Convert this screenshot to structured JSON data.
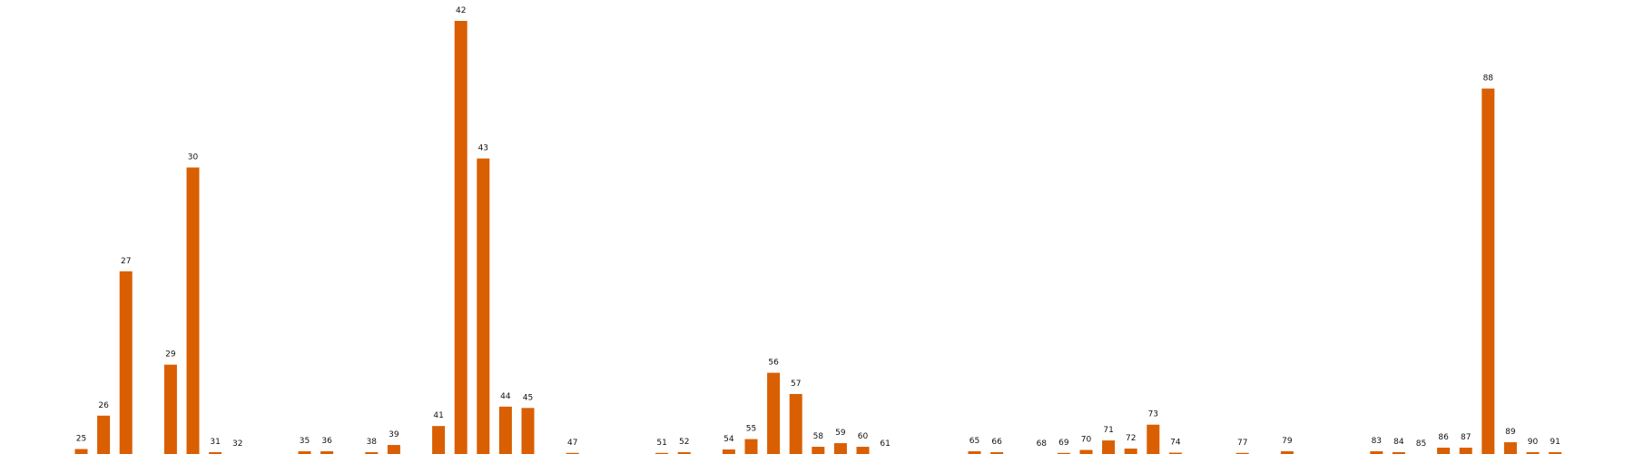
{
  "chart_data": {
    "type": "bar",
    "title": "",
    "xlabel": "",
    "ylabel": "",
    "grid": false,
    "legend": "none",
    "colors": {
      "bar": "#d95f02",
      "background": "#ffffff",
      "label": "#111111"
    },
    "ylim": [
      0,
      96
    ],
    "categories": [
      "25",
      "26",
      "27",
      "29",
      "30",
      "31",
      "32",
      "35",
      "36",
      "38",
      "39",
      "41",
      "42",
      "43",
      "44",
      "45",
      "47",
      "51",
      "52",
      "54",
      "55",
      "56",
      "57",
      "58",
      "59",
      "60",
      "61",
      "65",
      "66",
      "68",
      "69",
      "70",
      "71",
      "72",
      "73",
      "74",
      "77",
      "79",
      "83",
      "84",
      "85",
      "86",
      "87",
      "88",
      "89",
      "90",
      "91"
    ],
    "values": [
      1.1,
      8.5,
      40.5,
      19.8,
      63.5,
      0.4,
      0.0,
      0.6,
      0.6,
      0.4,
      2.0,
      6.2,
      96.0,
      65.5,
      10.5,
      10.2,
      0.2,
      0.2,
      0.4,
      1.0,
      3.3,
      18.0,
      13.3,
      1.6,
      2.4,
      1.6,
      0.0,
      0.6,
      0.4,
      0.0,
      0.2,
      0.9,
      3.0,
      1.2,
      6.5,
      0.3,
      0.2,
      0.6,
      0.6,
      0.4,
      0.0,
      1.4,
      1.4,
      81.0,
      2.6,
      0.4,
      0.4
    ]
  }
}
